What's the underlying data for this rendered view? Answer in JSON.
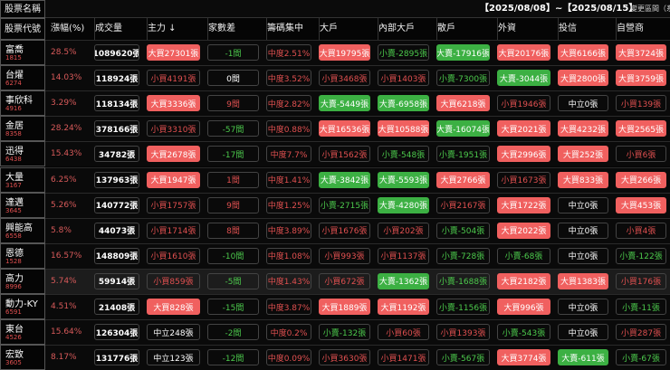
{
  "header": {
    "name_label": "股票名稱",
    "code_label": "股票代號",
    "date_range": "【2025/08/08】~【2025/08/15】",
    "range_label": "變更區間（系"
  },
  "columns": [
    "漲幅(%)",
    "成交量",
    "主力 ↓",
    "家數差",
    "籌碼集中",
    "大戶",
    "內部大戶",
    "散戶",
    "外資",
    "投信",
    "自營商"
  ],
  "rows": [
    {
      "name": "富喬",
      "code": "1815",
      "cells": [
        "28.5%",
        "1089620張",
        "大買27301張",
        "-1間",
        "中度2.51%",
        "大買19795張",
        "小賣-2895張",
        "大賣-17916張",
        "大買20176張",
        "大買6166張",
        "大買3724張"
      ]
    },
    {
      "name": "台燿",
      "code": "6274",
      "cells": [
        "14.03%",
        "118924張",
        "小買4191張",
        "0間",
        "中度3.52%",
        "小買3468張",
        "小買1403張",
        "小賣-7300張",
        "大賣-3044張",
        "大買2800張",
        "大買3759張"
      ]
    },
    {
      "name": "事欣科",
      "code": "4916",
      "cells": [
        "3.29%",
        "118134張",
        "大買3336張",
        "9間",
        "中度2.82%",
        "大賣-5449張",
        "大賣-6958張",
        "大買6218張",
        "小買1946張",
        "中立0張",
        "小買139張"
      ]
    },
    {
      "name": "金居",
      "code": "8358",
      "cells": [
        "28.24%",
        "378166張",
        "小買3310張",
        "-57間",
        "中度0.88%",
        "大買16536張",
        "大買10588張",
        "大賣-16074張",
        "大買2021張",
        "大買4232張",
        "大買2565張"
      ]
    },
    {
      "name": "迅得",
      "code": "6438",
      "cells": [
        "15.43%",
        "34782張",
        "大買2678張",
        "-17間",
        "中度7.7%",
        "小買1562張",
        "小賣-548張",
        "小賣-1951張",
        "大買2996張",
        "大買252張",
        "小買6張"
      ]
    },
    {
      "name": "大量",
      "code": "3167",
      "cells": [
        "6.25%",
        "137963張",
        "大買1947張",
        "1間",
        "中度1.41%",
        "大賣-3842張",
        "大賣-5593張",
        "大買2766張",
        "小買1673張",
        "大買833張",
        "大買266張"
      ]
    },
    {
      "name": "達邁",
      "code": "3645",
      "cells": [
        "5.26%",
        "140772張",
        "小買1757張",
        "9間",
        "中度1.25%",
        "小賣-2715張",
        "大賣-4280張",
        "小買2167張",
        "大買1722張",
        "中立0張",
        "大買453張"
      ]
    },
    {
      "name": "興能高",
      "code": "6558",
      "cells": [
        "5.8%",
        "44073張",
        "小買1714張",
        "8間",
        "中度3.89%",
        "小買1676張",
        "小買202張",
        "小賣-504張",
        "大買2022張",
        "中立0張",
        "小買4張"
      ]
    },
    {
      "name": "恩德",
      "code": "1528",
      "cells": [
        "16.57%",
        "148809張",
        "小買1610張",
        "-10間",
        "中度1.08%",
        "小買993張",
        "小買1137張",
        "小賣-728張",
        "小賣-68張",
        "中立0張",
        "小賣-122張"
      ]
    },
    {
      "name": "高力",
      "code": "8996",
      "cells": [
        "5.74%",
        "59914張",
        "小買859張",
        "-5間",
        "中度1.43%",
        "小買672張",
        "大賣-1362張",
        "小賣-1688張",
        "大買2182張",
        "大買1383張",
        "小買176張"
      ]
    },
    {
      "name": "動力-KY",
      "code": "6591",
      "cells": [
        "4.51%",
        "21408張",
        "大買828張",
        "-15間",
        "中度3.87%",
        "大買1889張",
        "大買1192張",
        "小賣-1156張",
        "大買996張",
        "中立0張",
        "小賣-11張"
      ]
    },
    {
      "name": "東台",
      "code": "4526",
      "cells": [
        "15.64%",
        "126304張",
        "中立248張",
        "-2間",
        "中度0.2%",
        "小賣-132張",
        "小買60張",
        "小買1393張",
        "小賣-543張",
        "中立0張",
        "小買287張"
      ]
    },
    {
      "name": "宏致",
      "code": "3605",
      "cells": [
        "8.17%",
        "131776張",
        "中立123張",
        "-12間",
        "中度0.09%",
        "小買3630張",
        "小買1471張",
        "小賣-567張",
        "大買3774張",
        "大賣-611張",
        "小賣-67張"
      ]
    }
  ]
}
